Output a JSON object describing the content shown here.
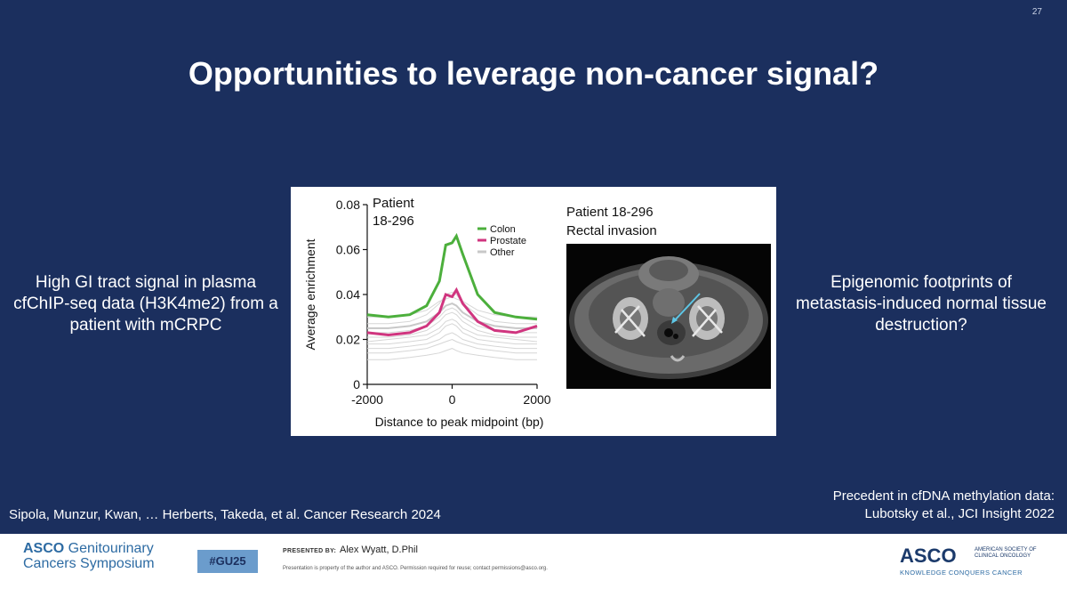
{
  "slide": {
    "page_number": "27",
    "title": "Opportunities to leverage non-cancer signal?",
    "left_text": "High GI tract signal in plasma cfChIP-seq data (H3K4me2) from a patient with mCRPC",
    "right_text": "Epigenomic footprints of metastasis-induced normal tissue destruction?",
    "citation_left": "Sipola, Munzur, Kwan, … Herberts, Takeda, et al. Cancer Research 2024",
    "citation_right_line1": "Precedent in cfDNA methylation data:",
    "citation_right_line2": "Lubotsky et al., JCI Insight 2022"
  },
  "figure": {
    "ct_caption_line1": "Patient 18-296",
    "ct_caption_line2": "Rectal invasion"
  },
  "chart_data": {
    "type": "line",
    "annotation_line1": "Patient",
    "annotation_line2": "18-296",
    "xlabel": "Distance to peak midpoint (bp)",
    "ylabel": "Average enrichment",
    "xlim": [
      -2000,
      2000
    ],
    "ylim": [
      0,
      0.08
    ],
    "x_ticks": [
      "-2000",
      "0",
      "2000"
    ],
    "y_ticks": [
      "0",
      "0.02",
      "0.04",
      "0.06",
      "0.08"
    ],
    "legend_placement": "top-right",
    "x": [
      -2000,
      -1500,
      -1000,
      -600,
      -300,
      -150,
      0,
      100,
      250,
      600,
      1000,
      1500,
      2000
    ],
    "series": [
      {
        "name": "Colon",
        "color": "#4caf3c",
        "values": [
          0.031,
          0.03,
          0.031,
          0.035,
          0.046,
          0.062,
          0.063,
          0.066,
          0.058,
          0.04,
          0.032,
          0.03,
          0.029
        ]
      },
      {
        "name": "Prostate",
        "color": "#d0357f",
        "values": [
          0.023,
          0.022,
          0.023,
          0.026,
          0.032,
          0.04,
          0.039,
          0.042,
          0.036,
          0.028,
          0.024,
          0.023,
          0.026
        ]
      },
      {
        "name": "Other",
        "color": "#c8c8c8",
        "values": [
          0.025,
          0.025,
          0.026,
          0.028,
          0.032,
          0.035,
          0.036,
          0.035,
          0.032,
          0.028,
          0.026,
          0.025,
          0.025
        ]
      }
    ],
    "other_profiles": [
      [
        0.018,
        0.018,
        0.019,
        0.02,
        0.023,
        0.026,
        0.027,
        0.026,
        0.023,
        0.02,
        0.019,
        0.018,
        0.018
      ],
      [
        0.021,
        0.021,
        0.022,
        0.024,
        0.028,
        0.031,
        0.032,
        0.031,
        0.028,
        0.024,
        0.022,
        0.021,
        0.021
      ],
      [
        0.016,
        0.016,
        0.017,
        0.018,
        0.02,
        0.022,
        0.023,
        0.022,
        0.02,
        0.018,
        0.017,
        0.016,
        0.016
      ],
      [
        0.027,
        0.027,
        0.028,
        0.031,
        0.036,
        0.04,
        0.041,
        0.04,
        0.036,
        0.031,
        0.028,
        0.027,
        0.027
      ],
      [
        0.014,
        0.014,
        0.015,
        0.016,
        0.018,
        0.019,
        0.02,
        0.019,
        0.018,
        0.016,
        0.015,
        0.014,
        0.014
      ],
      [
        0.023,
        0.023,
        0.024,
        0.026,
        0.03,
        0.033,
        0.034,
        0.033,
        0.03,
        0.026,
        0.024,
        0.023,
        0.023
      ],
      [
        0.011,
        0.011,
        0.012,
        0.013,
        0.014,
        0.015,
        0.016,
        0.015,
        0.014,
        0.013,
        0.012,
        0.011,
        0.011
      ],
      [
        0.019,
        0.02,
        0.021,
        0.022,
        0.025,
        0.028,
        0.029,
        0.028,
        0.025,
        0.022,
        0.021,
        0.02,
        0.019
      ],
      [
        0.03,
        0.03,
        0.031,
        0.033,
        0.037,
        0.038,
        0.039,
        0.038,
        0.037,
        0.033,
        0.031,
        0.03,
        0.03
      ]
    ]
  },
  "footer": {
    "symposium_line1_bold": "ASCO",
    "symposium_line1_rest": " Genitourinary",
    "symposium_line2": "Cancers Symposium",
    "hashtag": "#GU25",
    "presented_by_label": "PRESENTED BY:",
    "presenter": "Alex Wyatt, D.Phil",
    "disclaimer": "Presentation is property of the author and ASCO. Permission required for reuse; contact permissions@asco.org.",
    "asco_logo": "ASCO",
    "asco_society": "AMERICAN SOCIETY OF CLINICAL ONCOLOGY",
    "asco_tagline": "KNOWLEDGE CONQUERS CANCER"
  }
}
